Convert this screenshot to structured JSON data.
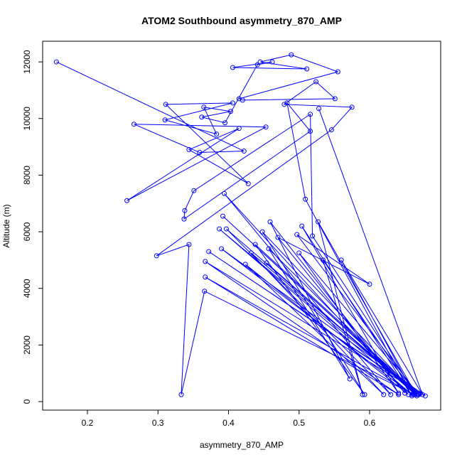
{
  "chart_data": {
    "type": "line",
    "title": "ATOM2 Southbound asymmetry_870_AMP",
    "x_label": "asymmetry_870_AMP",
    "y_label": "Altitude (m)",
    "color": "#0000ff",
    "markers": true,
    "x": [
      0.156,
      0.422,
      0.359,
      0.266,
      0.453,
      0.256,
      0.415,
      0.344,
      0.428,
      0.311,
      0.406,
      0.31,
      0.383,
      0.365,
      0.403,
      0.362,
      0.395,
      0.441,
      0.462,
      0.406,
      0.511,
      0.445,
      0.489,
      0.555,
      0.415,
      0.42,
      0.551,
      0.524,
      0.479,
      0.575,
      0.546,
      0.298,
      0.344,
      0.333,
      0.366,
      0.663,
      0.367,
      0.641,
      0.367,
      0.672,
      0.372,
      0.679,
      0.39,
      0.66,
      0.387,
      0.665,
      0.392,
      0.668,
      0.397,
      0.63,
      0.394,
      0.655,
      0.424,
      0.62,
      0.432,
      0.67,
      0.438,
      0.593,
      0.448,
      0.664,
      0.454,
      0.667,
      0.457,
      0.572,
      0.459,
      0.65,
      0.47,
      0.6,
      0.497,
      0.669,
      0.5,
      0.641,
      0.504,
      0.66,
      0.509,
      0.483,
      0.516,
      0.337,
      0.338,
      0.351,
      0.516,
      0.519,
      0.666,
      0.527,
      0.59,
      0.534,
      0.662,
      0.56,
      0.675,
      0.528
    ],
    "values": [
      12000,
      8850,
      8800,
      9800,
      9700,
      7100,
      9650,
      8900,
      7700,
      10500,
      10550,
      9950,
      9450,
      10400,
      10250,
      10050,
      9850,
      11900,
      12000,
      11800,
      11750,
      12000,
      12250,
      11650,
      10700,
      10650,
      10700,
      11300,
      10500,
      10400,
      9600,
      5150,
      5550,
      250,
      3900,
      250,
      4400,
      250,
      4950,
      300,
      5300,
      200,
      5400,
      250,
      6100,
      300,
      6550,
      250,
      6100,
      250,
      7350,
      250,
      4850,
      250,
      5250,
      250,
      5550,
      250,
      6000,
      300,
      4900,
      200,
      5400,
      800,
      6350,
      300,
      5800,
      4150,
      5900,
      250,
      5250,
      300,
      6200,
      200,
      7150,
      10550,
      9550,
      6450,
      6750,
      7450,
      10150,
      5850,
      250,
      6350,
      250,
      5000,
      300,
      5000,
      250,
      10350
    ],
    "xlim": [
      0.1365,
      0.7008
    ],
    "ylim": [
      -300,
      12730
    ],
    "xticks": [
      0.2,
      0.3,
      0.4,
      0.5,
      0.6
    ],
    "yticks": [
      0,
      2000,
      4000,
      6000,
      8000,
      10000,
      12000
    ]
  }
}
